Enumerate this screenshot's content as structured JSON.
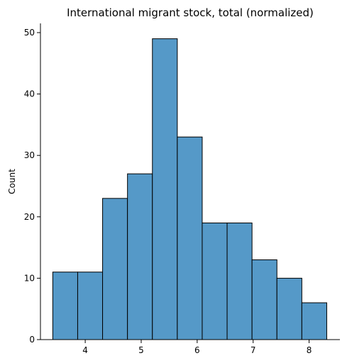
{
  "chart_data": {
    "type": "bar",
    "title": "International migrant stock, total (normalized)",
    "xlabel": "",
    "ylabel": "Count",
    "bin_edges": [
      3.42,
      3.865,
      4.31,
      4.755,
      5.2,
      5.645,
      6.09,
      6.535,
      6.98,
      7.425,
      7.87,
      8.315
    ],
    "values": [
      11,
      11,
      23,
      27,
      49,
      33,
      19,
      19,
      13,
      10,
      6
    ],
    "xlim": [
      3.2,
      8.55
    ],
    "ylim": [
      0,
      51.5
    ],
    "xticks": [
      4,
      5,
      6,
      7,
      8
    ],
    "yticks": [
      0,
      10,
      20,
      30,
      40,
      50
    ],
    "bar_color": "#5599c8",
    "edge_color": "#000000",
    "grid": false,
    "legend": "none"
  }
}
